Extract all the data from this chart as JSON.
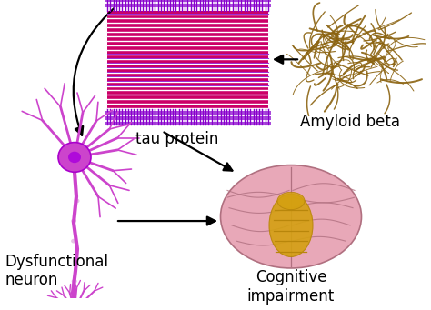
{
  "background_color": "#ffffff",
  "labels": {
    "tau_protein": "tau protein",
    "amyloid_beta": "Amyloid beta",
    "dysfunctional_neuron": "Dysfunctional\nneuron",
    "cognitive_impairment": "Cognitive\nimpairment"
  },
  "label_fontsize": 12,
  "label_color": "#000000",
  "tau_color_main": "#cc0066",
  "tau_color_purple": "#8800cc",
  "tau_color_light": "#cc88ff",
  "neuron_color": "#cc44cc",
  "neuron_body": "#aa00cc",
  "neuron_axon": "#cc88cc",
  "brain_color": "#e8a8b8",
  "brain_edge": "#b07080",
  "brain_gold": "#d4a010",
  "amyloid_color": "#8B6310"
}
